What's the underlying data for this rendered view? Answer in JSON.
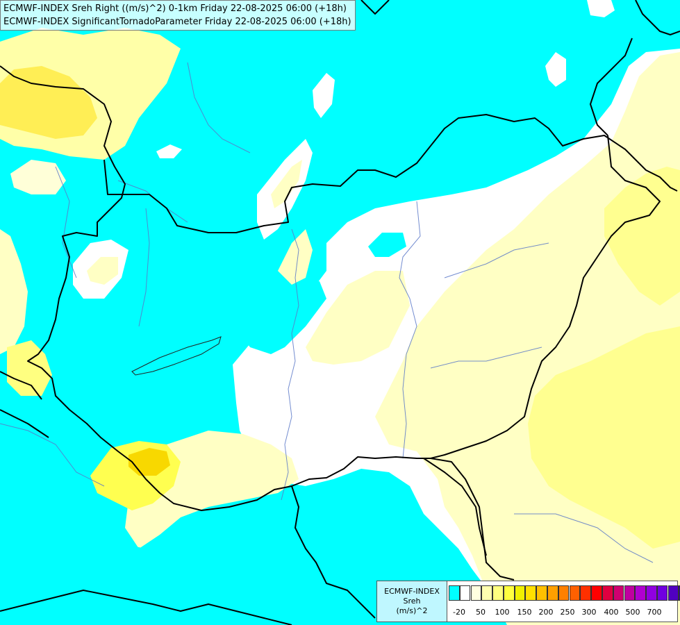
{
  "map": {
    "title_line1": "ECMWF-INDEX Sreh Right ((m/s)^2) 0-1km Friday 22-08-2025 06:00 (+18h)",
    "title_line2": "ECMWF-INDEX SignificantTornadoParameter Friday 22-08-2025 06:00 (+18h)",
    "colors": {
      "below_-20": "#00ffff",
      "-20_0": "#ffffff",
      "0_50": "#ffffc0",
      "50_100": "#ffff90",
      "100_150": "#ffee40",
      "150_200": "#f5d800",
      "border": "#000000",
      "river": "#5a78c8"
    }
  },
  "legend": {
    "line1": "ECMWF-INDEX",
    "line2": "Sreh",
    "line3": "(m/s)^2",
    "swatches": [
      "#00ffff",
      "#ffffff",
      "#ffffe0",
      "#ffffb0",
      "#ffff80",
      "#ffff40",
      "#f0f000",
      "#ffe000",
      "#ffc000",
      "#ffa000",
      "#ff8000",
      "#ff6000",
      "#ff3000",
      "#ff0000",
      "#e00040",
      "#d00070",
      "#c000a0",
      "#b000d0",
      "#9000e0",
      "#7000e0",
      "#5000c0",
      "#3000a0",
      "#100080",
      "#000060"
    ],
    "ticks": [
      "-20",
      "50",
      "100",
      "150",
      "200",
      "250",
      "300",
      "400",
      "500",
      "700"
    ]
  }
}
